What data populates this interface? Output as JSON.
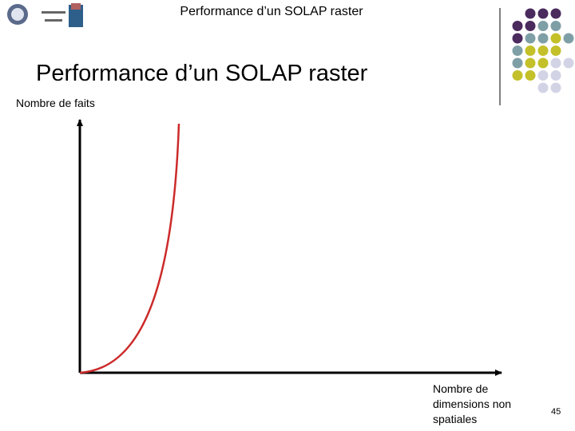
{
  "header": {
    "title": "Performance d’un SOLAP raster"
  },
  "slide": {
    "title": "Performance d’un SOLAP raster"
  },
  "diagram": {
    "y_axis_label": "Nombre de faits",
    "x_axis_label": "Nombre de dimensions non spatiales"
  },
  "footer": {
    "page_number": "45"
  }
}
